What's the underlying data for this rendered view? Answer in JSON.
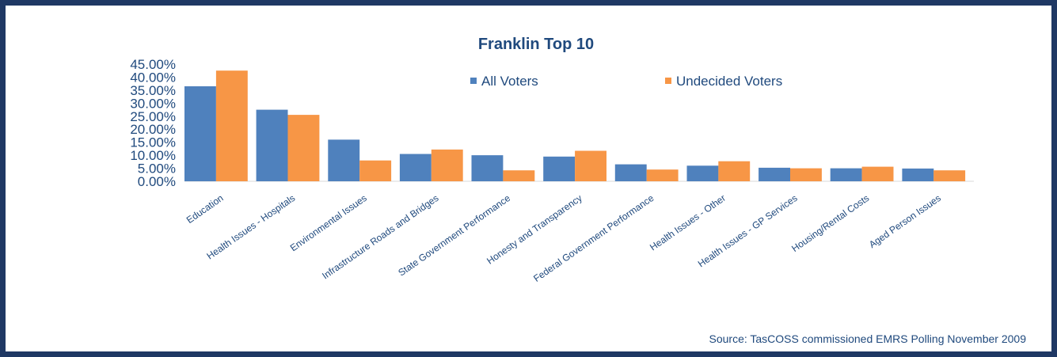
{
  "chart_data": {
    "type": "bar",
    "title": "Franklin Top 10",
    "xlabel": "",
    "ylabel": "",
    "ylim": [
      0,
      0.45
    ],
    "yticks": [
      "0.00%",
      "5.00%",
      "10.00%",
      "15.00%",
      "20.00%",
      "25.00%",
      "30.00%",
      "35.00%",
      "40.00%",
      "45.00%"
    ],
    "grid": false,
    "legend_position": "top-right",
    "categories": [
      "Education",
      "Health Issues - Hospitals",
      "Environmental Issues",
      "Infrastructure Roads and Bridges",
      "State Government Performance",
      "Honesty and Transparency",
      "Federal Government Performance",
      "Health Issues - Other",
      "Health Issues - GP Services",
      "Housing/Rental Costs",
      "Aged Person Issues"
    ],
    "series": [
      {
        "name": "All Voters",
        "color": "#4f81bd",
        "values": [
          0.365,
          0.275,
          0.16,
          0.105,
          0.1,
          0.095,
          0.065,
          0.06,
          0.052,
          0.05,
          0.049
        ]
      },
      {
        "name": "Undecided Voters",
        "color": "#f79646",
        "values": [
          0.425,
          0.255,
          0.08,
          0.122,
          0.042,
          0.117,
          0.045,
          0.077,
          0.05,
          0.056,
          0.042
        ]
      }
    ],
    "source": "Source: TasCOSS commissioned EMRS Polling November 2009"
  }
}
